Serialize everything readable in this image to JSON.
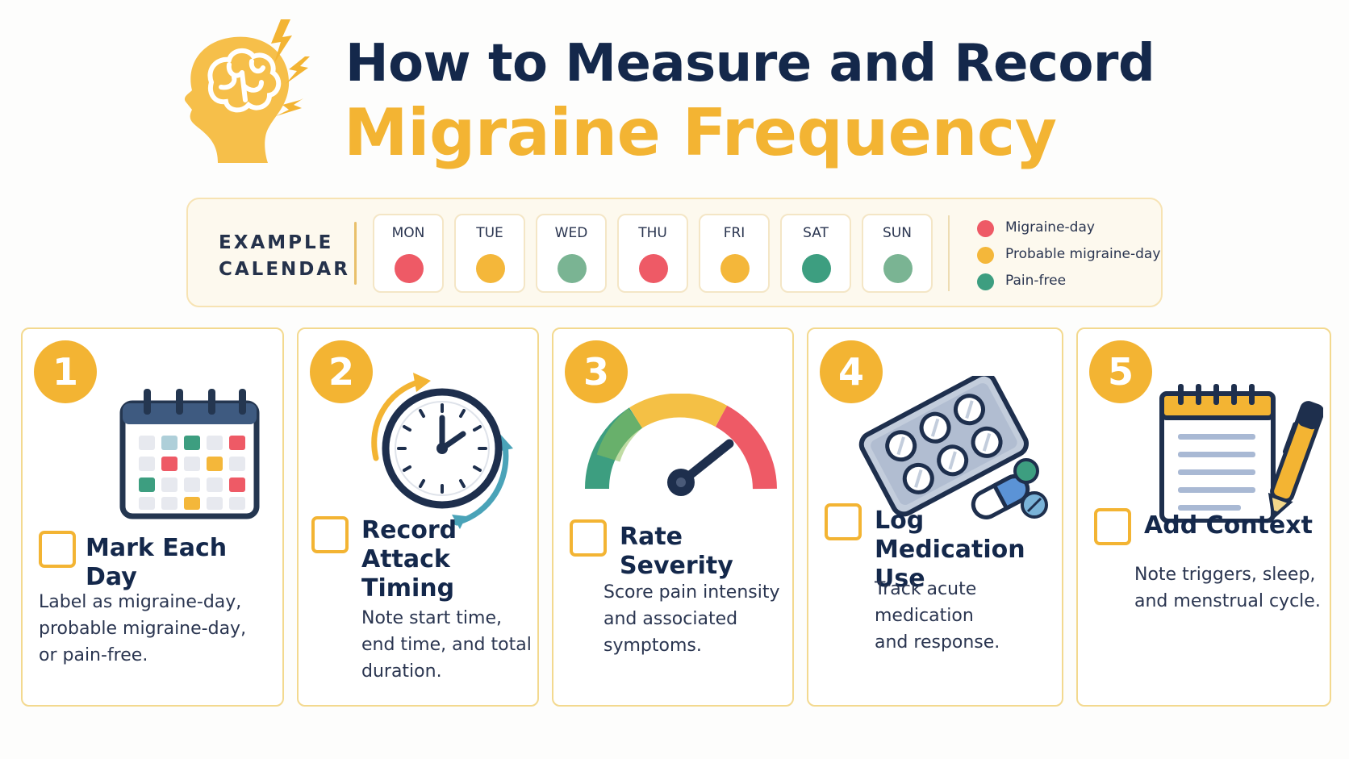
{
  "header": {
    "title_line1": "How to Measure and Record",
    "title_line2": "Migraine Frequency"
  },
  "calendar": {
    "label": "EXAMPLE\nCALENDAR",
    "days": [
      {
        "name": "MON",
        "status": "migraine-day",
        "color": "#ee5a66"
      },
      {
        "name": "TUE",
        "status": "probable",
        "color": "#f4b73a"
      },
      {
        "name": "WED",
        "status": "pain-free",
        "color": "#7ab493"
      },
      {
        "name": "THU",
        "status": "migraine-day",
        "color": "#ee5a66"
      },
      {
        "name": "FRI",
        "status": "probable",
        "color": "#f4b73a"
      },
      {
        "name": "SAT",
        "status": "pain-free",
        "color": "#3d9e80"
      },
      {
        "name": "SUN",
        "status": "pain-free",
        "color": "#7ab493"
      }
    ],
    "legend": [
      {
        "label": "Migraine-day",
        "color": "#ee5a66"
      },
      {
        "label": "Probable migraine-day",
        "color": "#f4b73a"
      },
      {
        "label": "Pain-free",
        "color": "#3d9e80"
      }
    ]
  },
  "steps": [
    {
      "number": "1",
      "title": "Mark Each Day",
      "description": "Label as migraine-day,\nprobable migraine-day,\nor pain-free.",
      "icon": "calendar-icon"
    },
    {
      "number": "2",
      "title": "Record Attack\nTiming",
      "description": "Note start time,\nend time, and total\nduration.",
      "icon": "clock-icon"
    },
    {
      "number": "3",
      "title": "Rate Severity",
      "description": "Score pain intensity\nand associated\nsymptoms.",
      "icon": "gauge-icon"
    },
    {
      "number": "4",
      "title": "Log Medication\nUse",
      "description": "Track acute medication\nand response.",
      "icon": "pill-pack-icon"
    },
    {
      "number": "5",
      "title": "Add Context",
      "description": "Note triggers, sleep,\nand menstrual cycle.",
      "icon": "notepad-pen-icon"
    }
  ],
  "colors": {
    "accent": "#f3b433",
    "navy": "#14284b",
    "red": "#ee5a66",
    "green": "#3d9e80"
  }
}
